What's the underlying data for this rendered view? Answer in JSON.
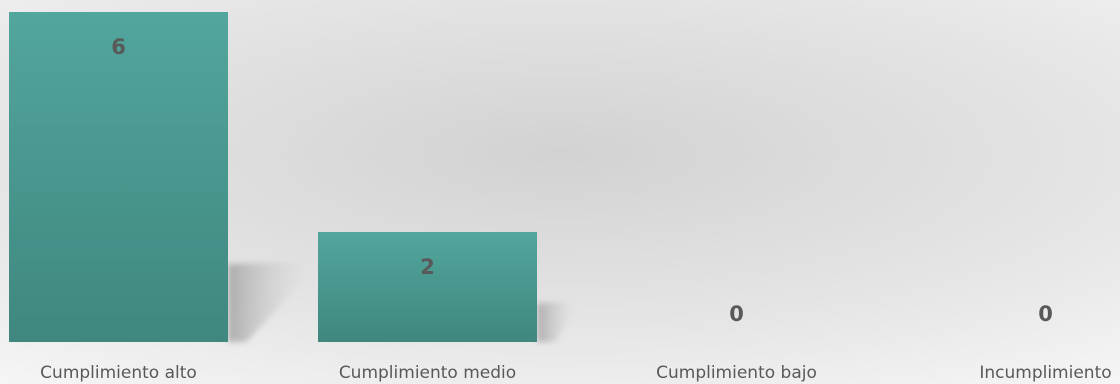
{
  "chart_data": {
    "type": "bar",
    "title": "",
    "xlabel": "",
    "ylabel": "",
    "categories": [
      "Cumplimiento alto",
      "Cumplimiento medio",
      "Cumplimiento bajo",
      "Incumplimiento"
    ],
    "values": [
      6,
      2,
      0,
      0
    ],
    "ylim": [
      0,
      6
    ],
    "grid": false,
    "legend": "none",
    "bar_color": "#4a9990",
    "label_color": "#595959"
  }
}
